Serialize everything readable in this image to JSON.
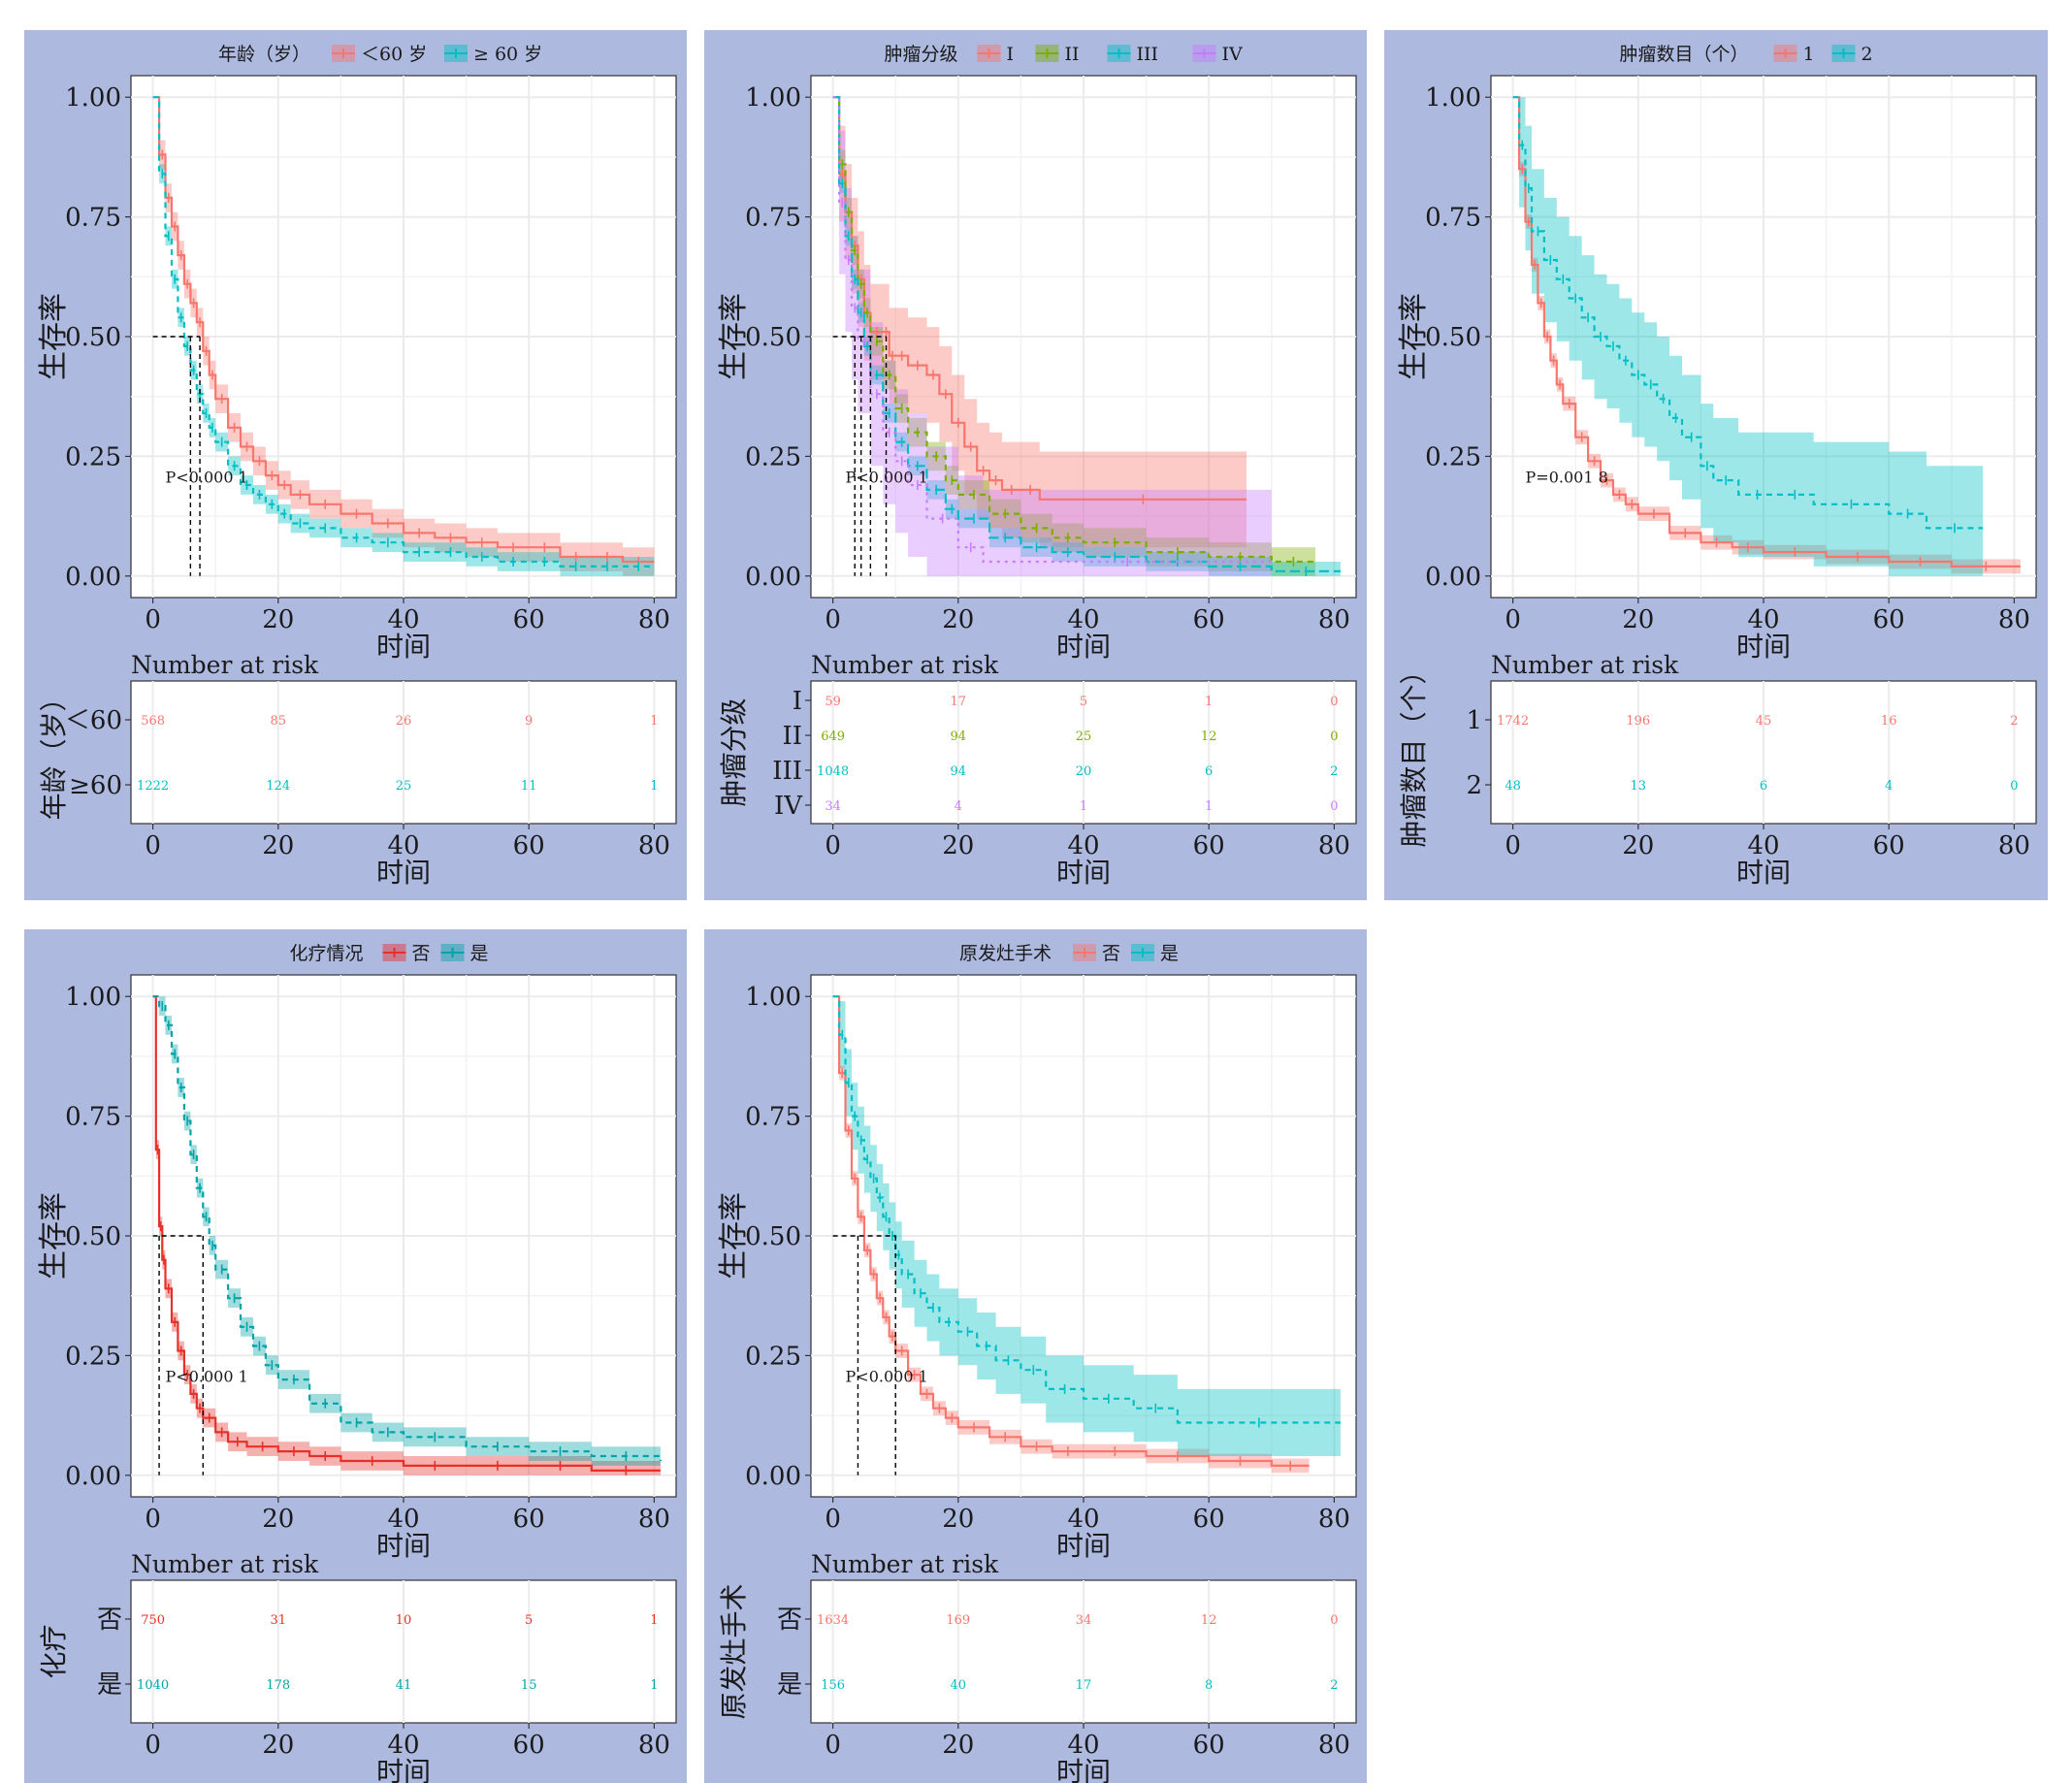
{
  "chart_data": [
    {
      "type": "line",
      "legend_title": "年龄（岁）",
      "legend_items": [
        "＜60 岁",
        "≥ 60 岁"
      ],
      "colors": [
        "#f8766d",
        "#00bfc4"
      ],
      "xlabel": "时间",
      "ylabel": "生存率",
      "xticks": [
        0,
        20,
        40,
        60,
        80
      ],
      "yticks": [
        "0.00",
        "0.25",
        "0.50",
        "0.75",
        "1.00"
      ],
      "xlim": [
        0,
        80
      ],
      "ylim": [
        0,
        1
      ],
      "pvalue": "P<0.000 1",
      "median_times": [
        7.5,
        6.0
      ],
      "series": [
        {
          "name": "＜60 岁",
          "end": 80,
          "x": [
            0,
            1,
            2,
            3,
            4,
            5,
            6,
            7,
            8,
            9,
            10,
            12,
            14,
            16,
            18,
            20,
            22,
            25,
            30,
            35,
            40,
            45,
            50,
            55,
            60,
            65,
            70,
            75,
            80
          ],
          "y": [
            1.0,
            0.88,
            0.79,
            0.73,
            0.67,
            0.61,
            0.57,
            0.53,
            0.47,
            0.42,
            0.37,
            0.31,
            0.27,
            0.24,
            0.21,
            0.19,
            0.17,
            0.15,
            0.13,
            0.11,
            0.09,
            0.08,
            0.07,
            0.06,
            0.06,
            0.04,
            0.04,
            0.03,
            0.03
          ],
          "band": 0.03
        },
        {
          "name": "≥ 60 岁",
          "end": 80,
          "x": [
            0,
            1,
            2,
            3,
            4,
            5,
            6,
            7,
            8,
            9,
            10,
            12,
            14,
            16,
            18,
            20,
            22,
            25,
            30,
            35,
            40,
            45,
            50,
            55,
            60,
            65,
            70,
            75,
            80
          ],
          "y": [
            1.0,
            0.84,
            0.71,
            0.62,
            0.54,
            0.48,
            0.43,
            0.38,
            0.34,
            0.31,
            0.28,
            0.23,
            0.19,
            0.17,
            0.15,
            0.13,
            0.11,
            0.1,
            0.08,
            0.07,
            0.05,
            0.05,
            0.04,
            0.03,
            0.03,
            0.02,
            0.02,
            0.02,
            0.02
          ],
          "band": 0.02
        }
      ],
      "risk_title": "Number at risk",
      "risk_ylabel": "年龄（岁）",
      "risk_rows": [
        {
          "label": "＜60",
          "values": [
            "568",
            "85",
            "26",
            "9",
            "1"
          ]
        },
        {
          "label": "≥60",
          "values": [
            "1222",
            "124",
            "25",
            "11",
            "1"
          ]
        }
      ]
    },
    {
      "type": "line",
      "legend_title": "肿瘤分级",
      "legend_items": [
        "I",
        "II",
        "III",
        "IV"
      ],
      "colors": [
        "#f8766d",
        "#7cae00",
        "#00bfc4",
        "#c77cff"
      ],
      "xlabel": "时间",
      "ylabel": "生存率",
      "xticks": [
        0,
        20,
        40,
        60,
        80
      ],
      "yticks": [
        "0.00",
        "0.25",
        "0.50",
        "0.75",
        "1.00"
      ],
      "xlim": [
        0,
        80
      ],
      "ylim": [
        0,
        1
      ],
      "pvalue": "P<0.000 1",
      "median_times": [
        8.5,
        6.0,
        4.5,
        3.5
      ],
      "series": [
        {
          "name": "I",
          "end": 66,
          "x": [
            0,
            1,
            2,
            3,
            4,
            5,
            6,
            8,
            9,
            10,
            12,
            15,
            17,
            19,
            21,
            23,
            25,
            27,
            30,
            33,
            66
          ],
          "y": [
            1.0,
            0.84,
            0.76,
            0.69,
            0.62,
            0.55,
            0.51,
            0.51,
            0.46,
            0.46,
            0.44,
            0.42,
            0.38,
            0.32,
            0.27,
            0.22,
            0.2,
            0.18,
            0.18,
            0.16,
            0.16
          ],
          "band": 0.1
        },
        {
          "name": "II",
          "end": 77,
          "x": [
            0,
            1,
            2,
            3,
            4,
            5,
            6,
            8,
            10,
            12,
            15,
            18,
            20,
            25,
            30,
            35,
            40,
            50,
            60,
            70,
            77
          ],
          "y": [
            1.0,
            0.86,
            0.76,
            0.68,
            0.61,
            0.55,
            0.49,
            0.42,
            0.35,
            0.3,
            0.25,
            0.2,
            0.17,
            0.13,
            0.1,
            0.08,
            0.07,
            0.05,
            0.04,
            0.03,
            0.03
          ],
          "band": 0.03
        },
        {
          "name": "III",
          "end": 81,
          "x": [
            0,
            1,
            2,
            3,
            4,
            5,
            6,
            8,
            10,
            12,
            15,
            18,
            20,
            25,
            30,
            35,
            40,
            50,
            60,
            70,
            81
          ],
          "y": [
            1.0,
            0.82,
            0.71,
            0.62,
            0.55,
            0.48,
            0.42,
            0.34,
            0.28,
            0.23,
            0.18,
            0.14,
            0.12,
            0.08,
            0.06,
            0.05,
            0.04,
            0.03,
            0.02,
            0.01,
            0.01
          ],
          "band": 0.02
        },
        {
          "name": "IV",
          "end": 70,
          "x": [
            0,
            1,
            2,
            3,
            4,
            6,
            8,
            10,
            12,
            15,
            20,
            24,
            70
          ],
          "y": [
            1.0,
            0.78,
            0.66,
            0.56,
            0.49,
            0.38,
            0.3,
            0.24,
            0.19,
            0.12,
            0.06,
            0.03,
            0.03
          ],
          "band": 0.15
        }
      ],
      "risk_title": "Number at risk",
      "risk_ylabel": "肿瘤分级",
      "risk_rows": [
        {
          "label": "I",
          "values": [
            "59",
            "17",
            "5",
            "1",
            "0"
          ]
        },
        {
          "label": "II",
          "values": [
            "649",
            "94",
            "25",
            "12",
            "0"
          ]
        },
        {
          "label": "III",
          "values": [
            "1048",
            "94",
            "20",
            "6",
            "2"
          ]
        },
        {
          "label": "IV",
          "values": [
            "34",
            "4",
            "1",
            "1",
            "0"
          ]
        }
      ]
    },
    {
      "type": "line",
      "legend_title": "肿瘤数目（个）",
      "legend_items": [
        "1",
        "2"
      ],
      "colors": [
        "#f8766d",
        "#00bfc4"
      ],
      "xlabel": "时间",
      "ylabel": "生存率",
      "xticks": [
        0,
        20,
        40,
        60,
        80
      ],
      "yticks": [
        "0.00",
        "0.25",
        "0.50",
        "0.75",
        "1.00"
      ],
      "xlim": [
        0,
        80
      ],
      "ylim": [
        0,
        1
      ],
      "pvalue": "P=0.001 8",
      "median_times": [],
      "series": [
        {
          "name": "1",
          "end": 81,
          "x": [
            0,
            1,
            2,
            3,
            4,
            5,
            6,
            7,
            8,
            10,
            12,
            14,
            16,
            18,
            20,
            25,
            30,
            35,
            40,
            50,
            60,
            70,
            81
          ],
          "y": [
            1.0,
            0.85,
            0.74,
            0.65,
            0.57,
            0.5,
            0.45,
            0.4,
            0.36,
            0.29,
            0.24,
            0.2,
            0.17,
            0.15,
            0.13,
            0.09,
            0.07,
            0.06,
            0.05,
            0.04,
            0.03,
            0.02,
            0.02
          ],
          "band": 0.015
        },
        {
          "name": "2",
          "end": 75,
          "x": [
            0,
            1,
            2,
            3,
            5,
            7,
            9,
            11,
            13,
            15,
            17,
            19,
            21,
            23,
            25,
            27,
            30,
            32,
            36,
            42,
            48,
            60,
            66,
            75
          ],
          "y": [
            1.0,
            0.9,
            0.81,
            0.72,
            0.66,
            0.62,
            0.58,
            0.54,
            0.5,
            0.48,
            0.45,
            0.42,
            0.4,
            0.37,
            0.33,
            0.29,
            0.23,
            0.2,
            0.17,
            0.17,
            0.15,
            0.13,
            0.1,
            0.1
          ],
          "band": 0.13
        }
      ],
      "risk_title": "Number at risk",
      "risk_ylabel": "肿瘤数目（个）",
      "risk_rows": [
        {
          "label": "1",
          "values": [
            "1742",
            "196",
            "45",
            "16",
            "2"
          ]
        },
        {
          "label": "2",
          "values": [
            "48",
            "13",
            "6",
            "4",
            "0"
          ]
        }
      ]
    },
    {
      "type": "line",
      "legend_title": "化疗情况",
      "legend_items": [
        "否",
        "是"
      ],
      "colors": [
        "#e8302a",
        "#00a3a8"
      ],
      "xlabel": "时间",
      "ylabel": "生存率",
      "xticks": [
        0,
        20,
        40,
        60,
        80
      ],
      "yticks": [
        "0.00",
        "0.25",
        "0.50",
        "0.75",
        "1.00"
      ],
      "xlim": [
        0,
        80
      ],
      "ylim": [
        0,
        1
      ],
      "pvalue": "P<0.000 1",
      "median_times": [
        1.0,
        8.0
      ],
      "series": [
        {
          "name": "否",
          "end": 81,
          "x": [
            0,
            0.5,
            1,
            1.5,
            2,
            3,
            4,
            5,
            6,
            7,
            8,
            10,
            12,
            15,
            20,
            25,
            30,
            40,
            50,
            60,
            70,
            81
          ],
          "y": [
            1.0,
            0.68,
            0.52,
            0.45,
            0.39,
            0.32,
            0.26,
            0.21,
            0.17,
            0.14,
            0.12,
            0.09,
            0.07,
            0.06,
            0.05,
            0.04,
            0.03,
            0.02,
            0.02,
            0.02,
            0.01,
            0.01
          ],
          "band": 0.02
        },
        {
          "name": "是",
          "end": 81,
          "x": [
            0,
            1,
            2,
            3,
            4,
            5,
            6,
            7,
            8,
            9,
            10,
            12,
            14,
            16,
            18,
            20,
            25,
            30,
            35,
            40,
            50,
            60,
            70,
            81
          ],
          "y": [
            1.0,
            0.98,
            0.94,
            0.88,
            0.81,
            0.74,
            0.67,
            0.6,
            0.54,
            0.48,
            0.43,
            0.37,
            0.31,
            0.27,
            0.23,
            0.2,
            0.15,
            0.11,
            0.09,
            0.08,
            0.06,
            0.05,
            0.04,
            0.03
          ],
          "band": 0.02
        }
      ],
      "risk_title": "Number at risk",
      "risk_ylabel": "化疗",
      "risk_rows": [
        {
          "label": "否",
          "values": [
            "750",
            "31",
            "10",
            "5",
            "1"
          ]
        },
        {
          "label": "是",
          "values": [
            "1040",
            "178",
            "41",
            "15",
            "1"
          ]
        }
      ]
    },
    {
      "type": "line",
      "legend_title": "原发灶手术",
      "legend_items": [
        "否",
        "是"
      ],
      "colors": [
        "#f8766d",
        "#00bfc4"
      ],
      "xlabel": "时间",
      "ylabel": "生存率",
      "xticks": [
        0,
        20,
        40,
        60,
        80
      ],
      "yticks": [
        "0.00",
        "0.25",
        "0.50",
        "0.75",
        "1.00"
      ],
      "xlim": [
        0,
        80
      ],
      "ylim": [
        0,
        1
      ],
      "pvalue": "P<0.000 1",
      "median_times": [
        4.0,
        10.0
      ],
      "series": [
        {
          "name": "否",
          "end": 76,
          "x": [
            0,
            1,
            2,
            3,
            4,
            5,
            6,
            7,
            8,
            9,
            10,
            12,
            14,
            16,
            18,
            20,
            25,
            30,
            35,
            40,
            50,
            60,
            70,
            76
          ],
          "y": [
            1.0,
            0.84,
            0.72,
            0.62,
            0.54,
            0.47,
            0.42,
            0.37,
            0.33,
            0.29,
            0.26,
            0.21,
            0.17,
            0.14,
            0.12,
            0.1,
            0.08,
            0.06,
            0.05,
            0.05,
            0.04,
            0.03,
            0.02,
            0.02
          ],
          "band": 0.015
        },
        {
          "name": "是",
          "end": 81,
          "x": [
            0,
            1,
            2,
            3,
            4,
            5,
            6,
            7,
            8,
            9,
            10,
            11,
            13,
            15,
            17,
            20,
            23,
            26,
            30,
            34,
            40,
            48,
            55,
            81
          ],
          "y": [
            1.0,
            0.92,
            0.82,
            0.75,
            0.7,
            0.66,
            0.62,
            0.58,
            0.54,
            0.5,
            0.46,
            0.42,
            0.38,
            0.35,
            0.32,
            0.3,
            0.27,
            0.24,
            0.22,
            0.18,
            0.16,
            0.14,
            0.11,
            0.11
          ],
          "band": 0.07
        }
      ],
      "risk_title": "Number at risk",
      "risk_ylabel": "原发灶手术",
      "risk_rows": [
        {
          "label": "否",
          "values": [
            "1634",
            "169",
            "34",
            "12",
            "0"
          ]
        },
        {
          "label": "是",
          "values": [
            "156",
            "40",
            "17",
            "8",
            "2"
          ]
        }
      ]
    }
  ]
}
